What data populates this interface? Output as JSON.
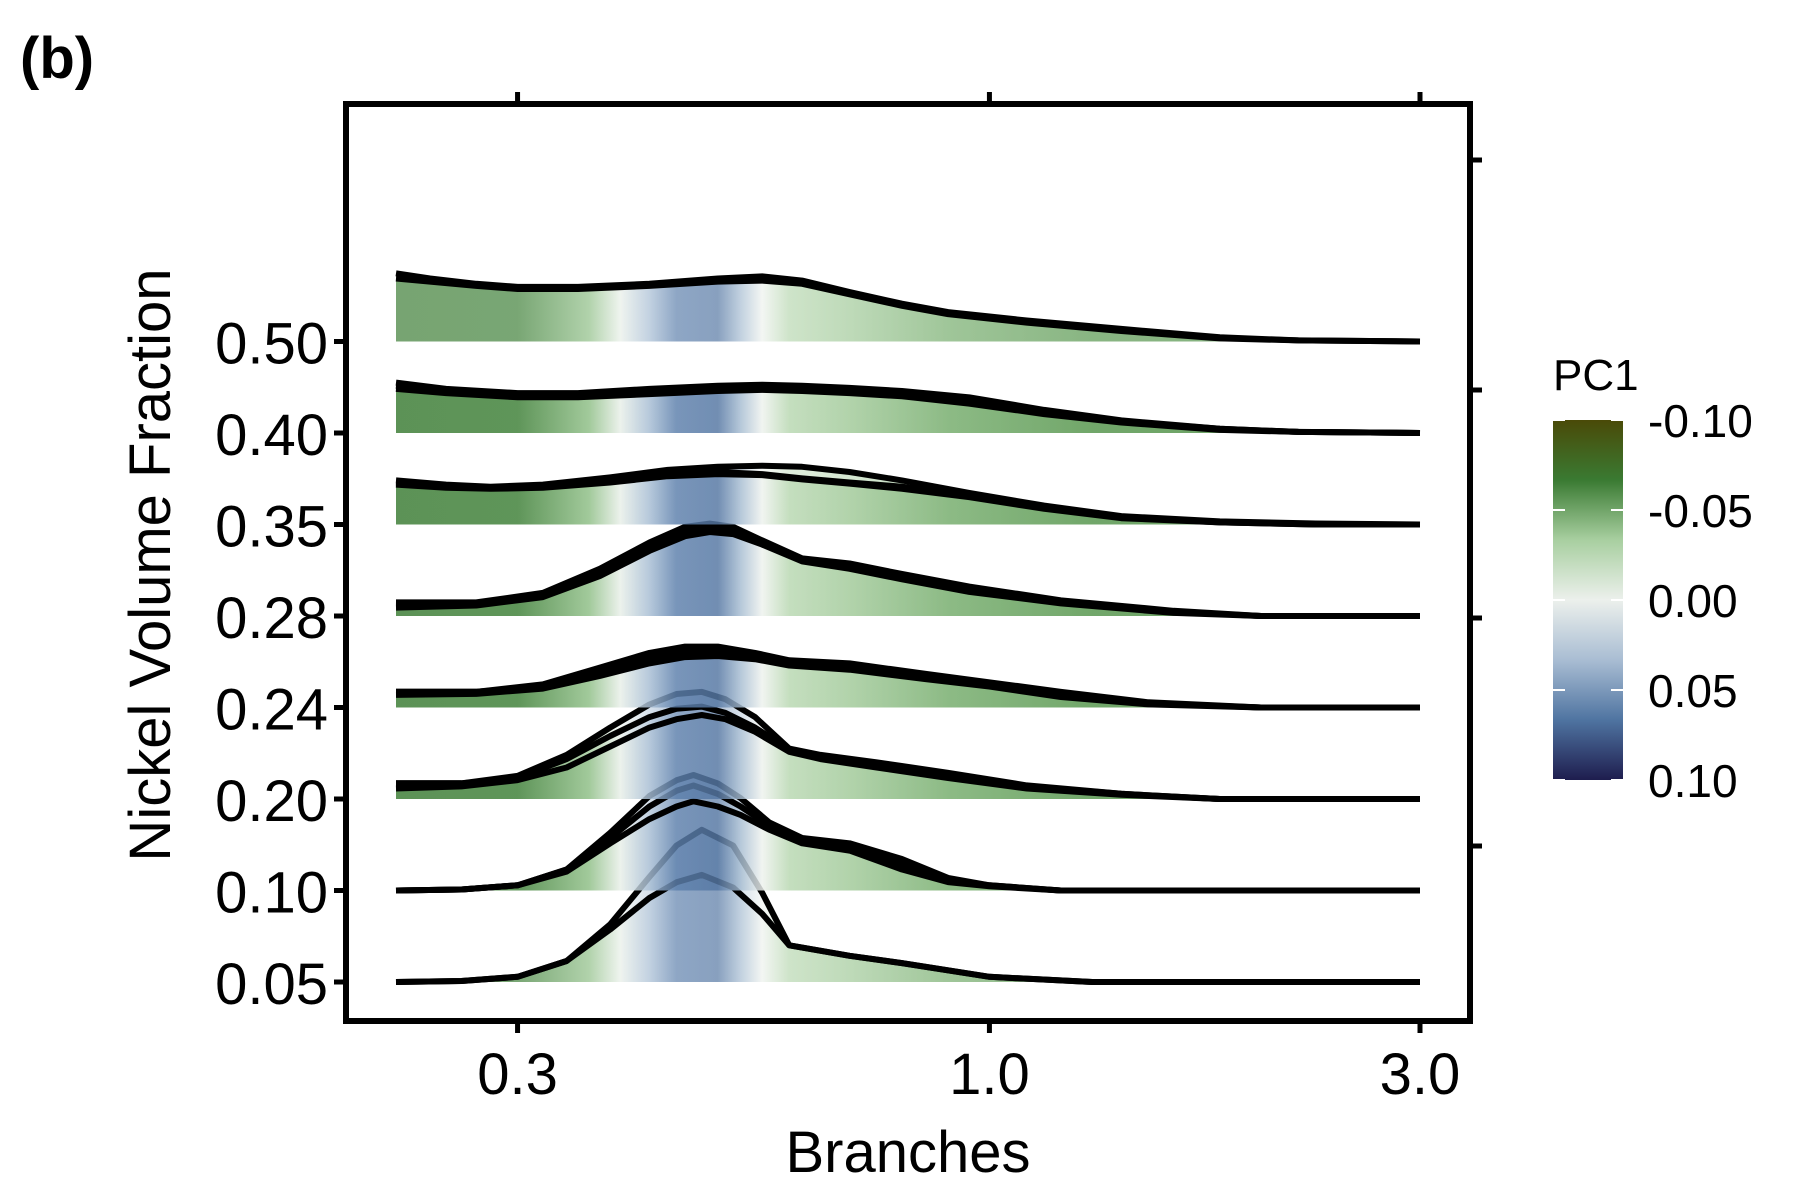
{
  "panel_label": "(b)",
  "chart_data": {
    "type": "ridgeline",
    "xlabel": "Branches",
    "ylabel": "Nickel Volume Fraction",
    "x_scale": "log10",
    "xlim": [
      0.22,
      3.0
    ],
    "x_ticks": [
      0.3,
      1.0,
      3.0
    ],
    "x_tick_labels": [
      "0.3",
      "1.0",
      "3.0"
    ],
    "categories": [
      "0.05",
      "0.10",
      "0.20",
      "0.24",
      "0.28",
      "0.35",
      "0.40",
      "0.50"
    ],
    "grid": false,
    "legend": {
      "title": "PC1",
      "placement": "right",
      "ticks": [
        -0.1,
        -0.05,
        0.0,
        0.05,
        0.1
      ],
      "tick_labels": [
        "-0.10",
        "-0.05",
        "0.00",
        "0.05",
        "0.10"
      ],
      "colors": [
        "#4a4a08",
        "#3a7a32",
        "#a8cfa0",
        "#ecf0ec",
        "#a9bdd3",
        "#4f74a1",
        "#1e1d4e"
      ]
    },
    "series": [
      {
        "category": "0.05",
        "curves": [
          {
            "x": [
              0.22,
              0.26,
              0.3,
              0.34,
              0.38,
              0.42,
              0.45,
              0.48,
              0.52,
              0.56,
              0.6,
              0.7,
              0.8,
              1.0,
              1.3,
              2.0,
              3.0
            ],
            "y": [
              0.0,
              0.01,
              0.05,
              0.2,
              0.55,
              1.0,
              1.3,
              1.45,
              1.3,
              0.85,
              0.35,
              0.25,
              0.18,
              0.05,
              0.0,
              0.0,
              0.0
            ]
          },
          {
            "x": [
              0.22,
              0.26,
              0.3,
              0.34,
              0.38,
              0.42,
              0.45,
              0.48,
              0.52,
              0.56,
              0.6,
              0.7,
              0.8,
              1.0,
              1.3,
              2.0,
              3.0
            ],
            "y": [
              0.0,
              0.01,
              0.05,
              0.2,
              0.5,
              0.8,
              0.95,
              1.02,
              0.9,
              0.65,
              0.35,
              0.25,
              0.18,
              0.05,
              0.0,
              0.0,
              0.0
            ]
          }
        ]
      },
      {
        "category": "0.10",
        "curves": [
          {
            "x": [
              0.22,
              0.26,
              0.3,
              0.34,
              0.38,
              0.42,
              0.45,
              0.47,
              0.5,
              0.53,
              0.57,
              0.62,
              0.7,
              0.8,
              0.9,
              1.0,
              1.2,
              1.5,
              3.0
            ],
            "y": [
              0.0,
              0.01,
              0.05,
              0.2,
              0.55,
              0.9,
              1.05,
              1.1,
              1.02,
              0.88,
              0.65,
              0.5,
              0.45,
              0.3,
              0.12,
              0.05,
              0.0,
              0.0,
              0.0
            ]
          },
          {
            "x": [
              0.22,
              0.26,
              0.3,
              0.34,
              0.38,
              0.42,
              0.45,
              0.47,
              0.5,
              0.53,
              0.57,
              0.62,
              0.7,
              0.8,
              0.9,
              1.0,
              1.2,
              1.5,
              3.0
            ],
            "y": [
              0.0,
              0.01,
              0.05,
              0.2,
              0.5,
              0.8,
              0.95,
              1.0,
              0.92,
              0.8,
              0.62,
              0.48,
              0.42,
              0.25,
              0.1,
              0.05,
              0.0,
              0.0,
              0.0
            ]
          },
          {
            "x": [
              0.22,
              0.26,
              0.3,
              0.34,
              0.38,
              0.42,
              0.45,
              0.47,
              0.5,
              0.53,
              0.57,
              0.62,
              0.7,
              0.8,
              0.9,
              1.0,
              1.2,
              1.5,
              3.0
            ],
            "y": [
              0.0,
              0.01,
              0.05,
              0.18,
              0.45,
              0.68,
              0.8,
              0.85,
              0.8,
              0.72,
              0.58,
              0.45,
              0.38,
              0.2,
              0.08,
              0.04,
              0.0,
              0.0,
              0.0
            ]
          }
        ]
      },
      {
        "category": "0.20",
        "curves": [
          {
            "x": [
              0.22,
              0.26,
              0.3,
              0.34,
              0.38,
              0.42,
              0.45,
              0.48,
              0.51,
              0.55,
              0.6,
              0.65,
              0.75,
              0.9,
              1.1,
              1.4,
              1.8,
              3.0
            ],
            "y": [
              0.15,
              0.15,
              0.22,
              0.42,
              0.68,
              0.9,
              1.0,
              1.02,
              0.95,
              0.78,
              0.48,
              0.42,
              0.35,
              0.25,
              0.13,
              0.05,
              0.0,
              0.0
            ]
          },
          {
            "x": [
              0.22,
              0.26,
              0.3,
              0.34,
              0.38,
              0.42,
              0.45,
              0.48,
              0.51,
              0.55,
              0.6,
              0.65,
              0.75,
              0.9,
              1.1,
              1.4,
              1.8,
              3.0
            ],
            "y": [
              0.15,
              0.15,
              0.2,
              0.38,
              0.6,
              0.78,
              0.86,
              0.88,
              0.82,
              0.68,
              0.47,
              0.4,
              0.33,
              0.22,
              0.12,
              0.05,
              0.0,
              0.0
            ]
          },
          {
            "x": [
              0.22,
              0.26,
              0.3,
              0.34,
              0.38,
              0.42,
              0.45,
              0.48,
              0.51,
              0.55,
              0.6,
              0.65,
              0.75,
              0.9,
              1.1,
              1.4,
              1.8,
              3.0
            ],
            "y": [
              0.1,
              0.12,
              0.18,
              0.3,
              0.5,
              0.68,
              0.76,
              0.8,
              0.76,
              0.64,
              0.45,
              0.38,
              0.3,
              0.2,
              0.1,
              0.04,
              0.0,
              0.0
            ]
          }
        ]
      },
      {
        "category": "0.24",
        "curves": [
          {
            "x": [
              0.22,
              0.27,
              0.32,
              0.37,
              0.42,
              0.46,
              0.5,
              0.55,
              0.6,
              0.7,
              0.85,
              1.0,
              1.2,
              1.5,
              2.0,
              3.0
            ],
            "y": [
              0.15,
              0.15,
              0.22,
              0.38,
              0.52,
              0.58,
              0.58,
              0.52,
              0.45,
              0.42,
              0.32,
              0.24,
              0.15,
              0.05,
              0.0,
              0.0
            ]
          },
          {
            "x": [
              0.22,
              0.27,
              0.32,
              0.37,
              0.42,
              0.46,
              0.5,
              0.55,
              0.6,
              0.7,
              0.85,
              1.0,
              1.2,
              1.5,
              2.0,
              3.0
            ],
            "y": [
              0.15,
              0.15,
              0.2,
              0.34,
              0.47,
              0.53,
              0.54,
              0.5,
              0.43,
              0.4,
              0.3,
              0.22,
              0.12,
              0.04,
              0.0,
              0.0
            ]
          },
          {
            "x": [
              0.22,
              0.27,
              0.32,
              0.37,
              0.42,
              0.46,
              0.5,
              0.55,
              0.6,
              0.7,
              0.85,
              1.0,
              1.2,
              1.5,
              2.0,
              3.0
            ],
            "y": [
              0.12,
              0.13,
              0.18,
              0.3,
              0.42,
              0.48,
              0.49,
              0.46,
              0.4,
              0.36,
              0.27,
              0.2,
              0.1,
              0.03,
              0.0,
              0.0
            ]
          }
        ]
      },
      {
        "category": "0.28",
        "curves": [
          {
            "x": [
              0.22,
              0.27,
              0.32,
              0.37,
              0.42,
              0.46,
              0.49,
              0.52,
              0.56,
              0.62,
              0.7,
              0.8,
              0.95,
              1.2,
              1.6,
              2.0,
              3.0
            ],
            "y": [
              0.13,
              0.13,
              0.22,
              0.45,
              0.7,
              0.85,
              0.88,
              0.85,
              0.72,
              0.55,
              0.5,
              0.4,
              0.28,
              0.15,
              0.05,
              0.0,
              0.0
            ]
          },
          {
            "x": [
              0.22,
              0.27,
              0.32,
              0.37,
              0.42,
              0.46,
              0.49,
              0.52,
              0.56,
              0.62,
              0.7,
              0.8,
              0.95,
              1.2,
              1.6,
              2.0,
              3.0
            ],
            "y": [
              0.1,
              0.11,
              0.2,
              0.42,
              0.66,
              0.8,
              0.84,
              0.81,
              0.7,
              0.53,
              0.47,
              0.37,
              0.25,
              0.13,
              0.04,
              0.0,
              0.0
            ]
          },
          {
            "x": [
              0.22,
              0.27,
              0.32,
              0.37,
              0.42,
              0.46,
              0.49,
              0.52,
              0.56,
              0.62,
              0.7,
              0.8,
              0.95,
              1.2,
              1.6,
              2.0,
              3.0
            ],
            "y": [
              0.08,
              0.1,
              0.18,
              0.38,
              0.62,
              0.76,
              0.8,
              0.78,
              0.68,
              0.52,
              0.45,
              0.35,
              0.23,
              0.12,
              0.03,
              0.0,
              0.0
            ]
          }
        ]
      },
      {
        "category": "0.35",
        "curves": [
          {
            "x": [
              0.22,
              0.25,
              0.28,
              0.32,
              0.38,
              0.44,
              0.5,
              0.56,
              0.62,
              0.7,
              0.8,
              0.95,
              1.15,
              1.4,
              1.8,
              2.3,
              3.0
            ],
            "y": [
              0.42,
              0.38,
              0.36,
              0.38,
              0.45,
              0.52,
              0.55,
              0.56,
              0.55,
              0.5,
              0.42,
              0.3,
              0.18,
              0.08,
              0.03,
              0.01,
              0.0
            ]
          },
          {
            "x": [
              0.22,
              0.25,
              0.28,
              0.32,
              0.38,
              0.44,
              0.5,
              0.56,
              0.62,
              0.7,
              0.8,
              0.95,
              1.15,
              1.4,
              1.8,
              2.3,
              3.0
            ],
            "y": [
              0.4,
              0.37,
              0.35,
              0.36,
              0.42,
              0.48,
              0.5,
              0.48,
              0.44,
              0.4,
              0.36,
              0.28,
              0.16,
              0.07,
              0.02,
              0.0,
              0.0
            ]
          },
          {
            "x": [
              0.22,
              0.25,
              0.28,
              0.32,
              0.38,
              0.44,
              0.5,
              0.56,
              0.62,
              0.7,
              0.8,
              0.95,
              1.15,
              1.4,
              1.8,
              2.3,
              3.0
            ],
            "y": [
              0.38,
              0.35,
              0.34,
              0.35,
              0.4,
              0.46,
              0.48,
              0.47,
              0.43,
              0.39,
              0.34,
              0.26,
              0.15,
              0.06,
              0.02,
              0.0,
              0.0
            ]
          }
        ]
      },
      {
        "category": "0.40",
        "curves": [
          {
            "x": [
              0.22,
              0.25,
              0.3,
              0.35,
              0.42,
              0.5,
              0.56,
              0.62,
              0.7,
              0.8,
              0.95,
              1.15,
              1.4,
              1.8,
              2.2,
              3.0
            ],
            "y": [
              0.48,
              0.42,
              0.38,
              0.38,
              0.42,
              0.45,
              0.46,
              0.45,
              0.43,
              0.4,
              0.34,
              0.22,
              0.12,
              0.04,
              0.01,
              0.0
            ]
          },
          {
            "x": [
              0.22,
              0.25,
              0.3,
              0.35,
              0.42,
              0.5,
              0.56,
              0.62,
              0.7,
              0.8,
              0.95,
              1.15,
              1.4,
              1.8,
              2.2,
              3.0
            ],
            "y": [
              0.45,
              0.4,
              0.36,
              0.36,
              0.39,
              0.42,
              0.43,
              0.42,
              0.4,
              0.37,
              0.3,
              0.2,
              0.11,
              0.04,
              0.01,
              0.0
            ]
          },
          {
            "x": [
              0.22,
              0.25,
              0.3,
              0.35,
              0.42,
              0.5,
              0.56,
              0.62,
              0.7,
              0.8,
              0.95,
              1.15,
              1.4,
              1.8,
              2.2,
              3.0
            ],
            "y": [
              0.42,
              0.38,
              0.34,
              0.34,
              0.37,
              0.4,
              0.41,
              0.4,
              0.38,
              0.35,
              0.28,
              0.18,
              0.1,
              0.03,
              0.01,
              0.0
            ]
          }
        ]
      },
      {
        "category": "0.50",
        "curves": [
          {
            "x": [
              0.22,
              0.24,
              0.27,
              0.3,
              0.35,
              0.42,
              0.5,
              0.56,
              0.62,
              0.7,
              0.8,
              0.9,
              1.1,
              1.4,
              1.8,
              2.2,
              3.0
            ],
            "y": [
              0.65,
              0.6,
              0.55,
              0.52,
              0.52,
              0.55,
              0.6,
              0.62,
              0.58,
              0.47,
              0.36,
              0.28,
              0.2,
              0.12,
              0.04,
              0.01,
              0.0
            ]
          },
          {
            "x": [
              0.22,
              0.24,
              0.27,
              0.3,
              0.35,
              0.42,
              0.5,
              0.56,
              0.62,
              0.7,
              0.8,
              0.9,
              1.1,
              1.4,
              1.8,
              2.2,
              3.0
            ],
            "y": [
              0.6,
              0.57,
              0.53,
              0.5,
              0.5,
              0.53,
              0.57,
              0.58,
              0.55,
              0.45,
              0.34,
              0.26,
              0.18,
              0.1,
              0.03,
              0.01,
              0.0
            ]
          }
        ]
      }
    ]
  }
}
